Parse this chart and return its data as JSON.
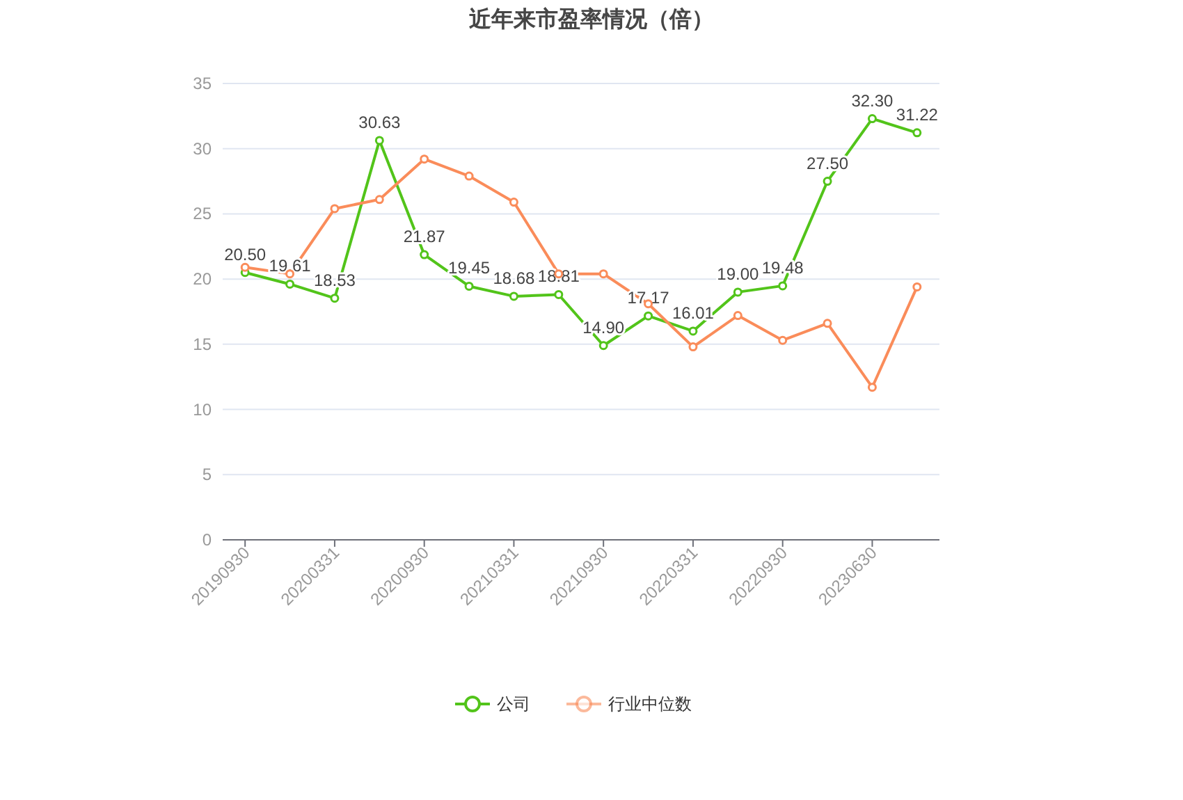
{
  "chart_data": {
    "type": "line",
    "title": "近年来市盈率情况（倍）",
    "categories": [
      "20190930",
      null,
      "20200331",
      null,
      "20200930",
      null,
      "20210331",
      null,
      "20210930",
      null,
      "20220331",
      null,
      "20220930",
      null,
      "20230630",
      null
    ],
    "series": [
      {
        "name": "公司",
        "color": "#52c41a",
        "values": [
          20.5,
          19.61,
          18.53,
          30.63,
          21.87,
          19.45,
          18.68,
          18.81,
          14.9,
          17.17,
          16.01,
          19.0,
          19.48,
          27.5,
          32.3,
          31.22
        ],
        "value_labels": [
          "20.50",
          "19.61",
          "18.53",
          "30.63",
          "21.87",
          "19.45",
          "18.68",
          "18.81",
          "14.90",
          "17.17",
          "16.01",
          "19.00",
          "19.48",
          "27.50",
          "32.30",
          "31.22"
        ]
      },
      {
        "name": "行业中位数",
        "color": "#fa8c5a",
        "values": [
          20.9,
          20.4,
          25.4,
          26.1,
          29.2,
          27.9,
          25.9,
          20.4,
          20.4,
          18.1,
          14.8,
          17.2,
          15.3,
          16.6,
          11.7,
          19.4
        ]
      }
    ],
    "ylim": [
      0,
      35
    ],
    "yticks": [
      0,
      5,
      10,
      15,
      20,
      25,
      30,
      35
    ],
    "grid": "y",
    "legend": "bottom",
    "marker": "circle",
    "line_style": "solid"
  }
}
